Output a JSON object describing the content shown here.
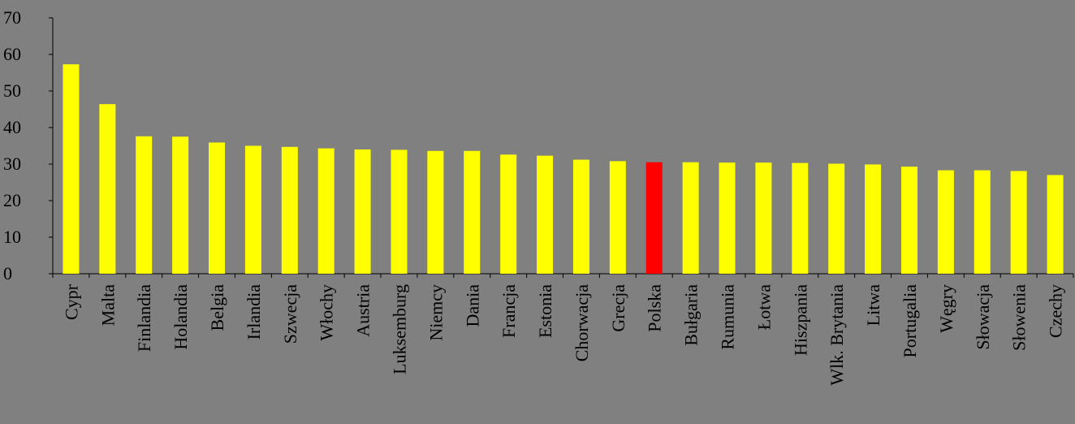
{
  "chart_data": {
    "type": "bar",
    "title": "",
    "xlabel": "",
    "ylabel": "",
    "ylim": [
      0,
      70
    ],
    "yticks": [
      0,
      10,
      20,
      30,
      40,
      50,
      60,
      70
    ],
    "grid": false,
    "legend": "none",
    "categories": [
      "Cypr",
      "Malta",
      "Finlandia",
      "Holandia",
      "Belgia",
      "Irlandia",
      "Szwecja",
      "Włochy",
      "Austria",
      "Luksemburg",
      "Niemcy",
      "Dania",
      "Francja",
      "Estonia",
      "Chorwacja",
      "Grecja",
      "Polska",
      "Bułgaria",
      "Rumunia",
      "Łotwa",
      "Hiszpania",
      "Wlk. Brytania",
      "Litwa",
      "Portugalia",
      "Węgry",
      "Słowacja",
      "Słowenia",
      "Czechy"
    ],
    "values": [
      57.3,
      46.4,
      37.6,
      37.5,
      35.9,
      35.0,
      34.7,
      34.3,
      34.0,
      33.9,
      33.6,
      33.6,
      32.6,
      32.3,
      31.2,
      30.8,
      30.5,
      30.5,
      30.4,
      30.4,
      30.3,
      30.1,
      29.9,
      29.3,
      28.3,
      28.3,
      28.1,
      27.0
    ],
    "highlight_category": "Polska",
    "colors": {
      "bar": "#FFFF00",
      "highlight": "#FF0000",
      "background": "#808080",
      "axis": "#000000"
    }
  }
}
